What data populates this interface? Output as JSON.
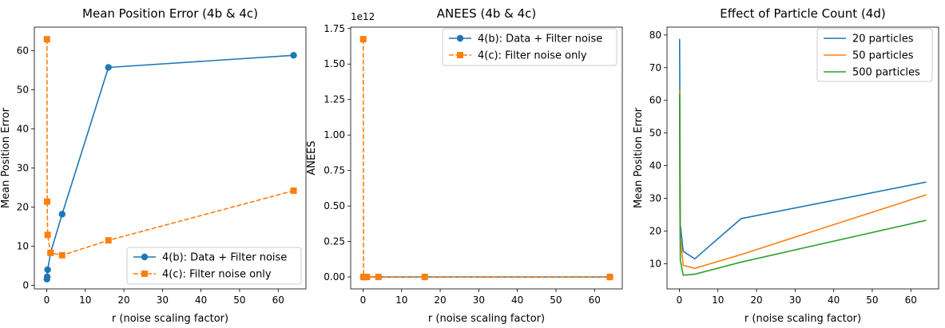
{
  "colors": {
    "blue": "#1f77b4",
    "orange": "#ff7f0e",
    "green": "#2ca02c"
  },
  "chart_data": [
    {
      "type": "line",
      "title": "Mean Position Error (4b & 4c)",
      "xlabel": "r (noise scaling factor)",
      "ylabel": "Mean Position Error",
      "xlim": [
        -3.2,
        67.2
      ],
      "ylim": [
        -0.9,
        66.0
      ],
      "xticks": [
        0,
        10,
        20,
        30,
        40,
        50,
        60
      ],
      "yticks": [
        0,
        10,
        20,
        30,
        40,
        50,
        60
      ],
      "legend": "bottom-right",
      "series": [
        {
          "name": "4(b): Data + Filter noise",
          "color": "#1f77b4",
          "style": "solid",
          "marker": "circle",
          "x": [
            0.0625,
            0.125,
            0.25,
            1,
            4,
            16,
            64
          ],
          "y": [
            1.6,
            2.2,
            4.0,
            8.3,
            18.2,
            55.7,
            58.8
          ]
        },
        {
          "name": "4(c): Filter noise only",
          "color": "#ff7f0e",
          "style": "dashed",
          "marker": "square",
          "x": [
            0.0625,
            0.125,
            0.25,
            1,
            4,
            16,
            64
          ],
          "y": [
            62.9,
            21.4,
            12.9,
            8.3,
            7.7,
            11.5,
            24.2
          ]
        }
      ]
    },
    {
      "type": "line",
      "title": "ANEES (4b & 4c)",
      "xlabel": "r (noise scaling factor)",
      "ylabel": "ANEES",
      "scale_label": "1e12",
      "xlim": [
        -3.2,
        67.2
      ],
      "ylim": [
        -0.084,
        1.76
      ],
      "xticks": [
        0,
        10,
        20,
        30,
        40,
        50,
        60
      ],
      "yticks": [
        0.0,
        0.25,
        0.5,
        0.75,
        1.0,
        1.25,
        1.5,
        1.75
      ],
      "ytick_labels": [
        "0.00",
        "0.25",
        "0.50",
        "0.75",
        "1.00",
        "1.25",
        "1.50",
        "1.75"
      ],
      "legend": "top-right",
      "series": [
        {
          "name": "4(b): Data + Filter noise",
          "color": "#1f77b4",
          "style": "solid",
          "marker": "circle",
          "x": [
            0.0625,
            0.125,
            0.25,
            1,
            4,
            16,
            64
          ],
          "y": [
            0,
            0,
            0,
            0,
            0,
            0,
            0
          ]
        },
        {
          "name": "4(c): Filter noise only",
          "color": "#ff7f0e",
          "style": "dashed",
          "marker": "square",
          "x": [
            0.0625,
            0.125,
            0.25,
            1,
            4,
            16,
            64
          ],
          "y": [
            1.675,
            0,
            0,
            0,
            0,
            0,
            0
          ]
        }
      ]
    },
    {
      "type": "line",
      "title": "Effect of Particle Count (4d)",
      "xlabel": "r (noise scaling factor)",
      "ylabel": "Mean Position Error",
      "xlim": [
        -3.2,
        67.2
      ],
      "ylim": [
        2.3,
        82.4
      ],
      "xticks": [
        0,
        10,
        20,
        30,
        40,
        50,
        60
      ],
      "yticks": [
        10,
        20,
        30,
        40,
        50,
        60,
        70,
        80
      ],
      "legend": "top-right",
      "series": [
        {
          "name": "20 particles",
          "color": "#1f77b4",
          "style": "solid",
          "marker": "none",
          "x": [
            0.0625,
            0.125,
            0.25,
            1,
            4,
            16,
            64
          ],
          "y": [
            78.8,
            60.0,
            22.0,
            13.8,
            11.5,
            23.8,
            35.0
          ]
        },
        {
          "name": "50 particles",
          "color": "#ff7f0e",
          "style": "solid",
          "marker": "none",
          "x": [
            0.0625,
            0.125,
            0.25,
            1,
            4,
            16,
            64
          ],
          "y": [
            63.0,
            42.0,
            18.0,
            9.5,
            8.6,
            12.8,
            31.1
          ]
        },
        {
          "name": "500 particles",
          "color": "#2ca02c",
          "style": "solid",
          "marker": "none",
          "x": [
            0.0625,
            0.125,
            0.25,
            1,
            4,
            16,
            64
          ],
          "y": [
            62.0,
            30.0,
            11.0,
            6.5,
            6.8,
            10.5,
            23.3
          ]
        }
      ]
    }
  ]
}
